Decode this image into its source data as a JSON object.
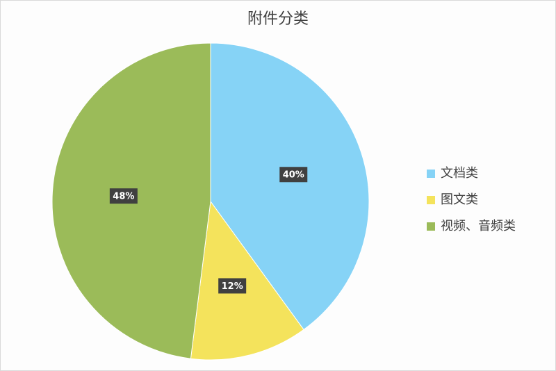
{
  "chart_data": {
    "type": "pie",
    "title": "附件分类",
    "categories": [
      "文档类",
      "图文类",
      "视频、音频类"
    ],
    "values": [
      40,
      12,
      48
    ],
    "value_labels": [
      "40%",
      "12%",
      "48%"
    ],
    "colors": [
      "#86d3f6",
      "#f4e35c",
      "#9bbb59"
    ],
    "legend": "right"
  }
}
